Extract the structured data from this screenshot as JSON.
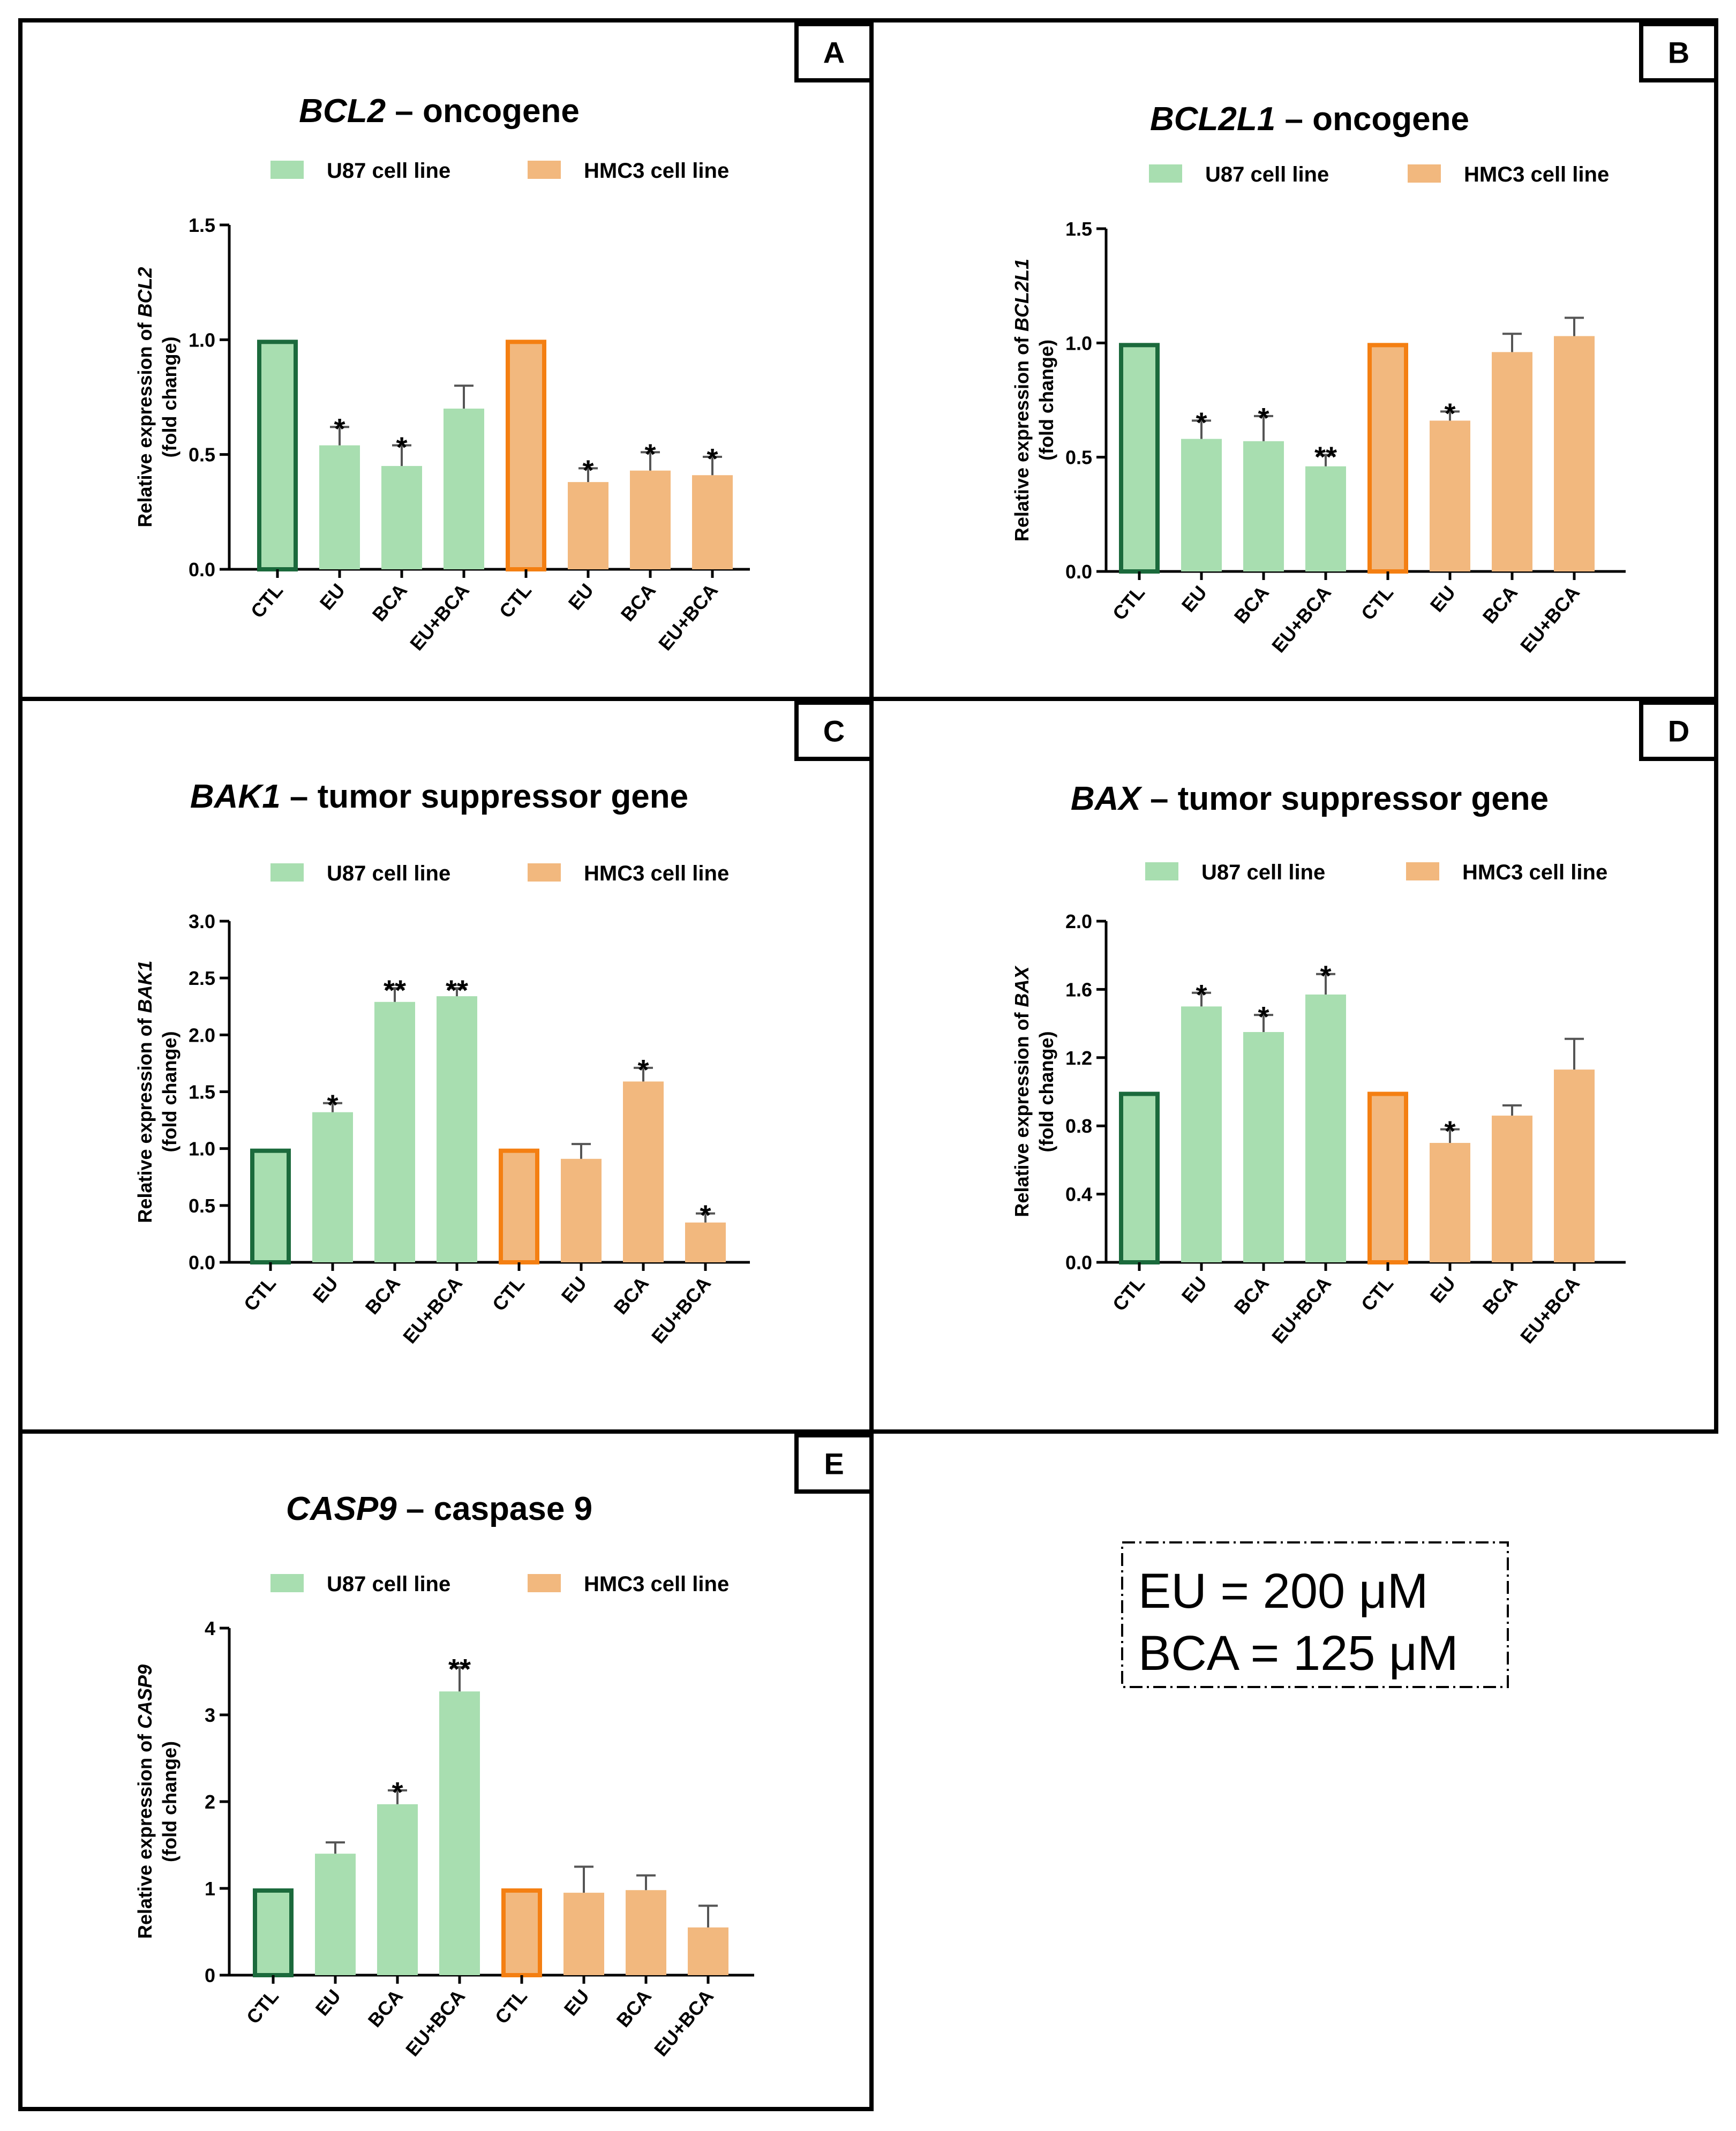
{
  "legend": {
    "u87_label": "U87 cell line",
    "hmc3_label": "HMC3 cell line"
  },
  "colors": {
    "u87_fill": "#a8deb0",
    "u87_ctl_stroke": "#1b6a3c",
    "hmc3_fill": "#f2b87e",
    "hmc3_ctl_stroke": "#f47f12",
    "error_bar": "#555555"
  },
  "note": {
    "line1": "EU = 200 μM",
    "line2": "BCA = 125 μM"
  },
  "chart_data": [
    {
      "panel": "A",
      "type": "bar",
      "title_gene": "BCL2",
      "title_rest": " – oncogene",
      "ylabel_prefix": "Relative expression of ",
      "ylabel_gene": "BCL2",
      "ylabel_line2": "(fold change)",
      "categories": [
        "CTL",
        "EU",
        "BCA",
        "EU+BCA",
        "CTL",
        "EU",
        "BCA",
        "EU+BCA"
      ],
      "groups": [
        "U87",
        "U87",
        "U87",
        "U87",
        "HMC3",
        "HMC3",
        "HMC3",
        "HMC3"
      ],
      "values": [
        1.0,
        0.54,
        0.45,
        0.7,
        1.0,
        0.38,
        0.43,
        0.41
      ],
      "errors": [
        0,
        0.08,
        0.09,
        0.1,
        0,
        0.06,
        0.08,
        0.08
      ],
      "significance": [
        "",
        "*",
        "*",
        "",
        "",
        "*",
        "*",
        "*"
      ],
      "ylim": [
        0,
        1.5
      ],
      "yticks": [
        "0.0",
        "0.5",
        "1.0",
        "1.5"
      ],
      "ytick_values": [
        0,
        0.5,
        1.0,
        1.5
      ]
    },
    {
      "panel": "B",
      "type": "bar",
      "title_gene": "BCL2L1",
      "title_rest": " – oncogene",
      "ylabel_prefix": "Relative expression of ",
      "ylabel_gene": "BCL2L1",
      "ylabel_line2": "(fold change)",
      "categories": [
        "CTL",
        "EU",
        "BCA",
        "EU+BCA",
        "CTL",
        "EU",
        "BCA",
        "EU+BCA"
      ],
      "groups": [
        "U87",
        "U87",
        "U87",
        "U87",
        "HMC3",
        "HMC3",
        "HMC3",
        "HMC3"
      ],
      "values": [
        1.0,
        0.58,
        0.57,
        0.46,
        1.0,
        0.66,
        0.96,
        1.03
      ],
      "errors": [
        0,
        0.08,
        0.11,
        0.05,
        0,
        0.04,
        0.08,
        0.08
      ],
      "significance": [
        "",
        "*",
        "*",
        "**",
        "",
        "*",
        "",
        ""
      ],
      "ylim": [
        0,
        1.5
      ],
      "yticks": [
        "0.0",
        "0.5",
        "1.0",
        "1.5"
      ],
      "ytick_values": [
        0,
        0.5,
        1.0,
        1.5
      ]
    },
    {
      "panel": "C",
      "type": "bar",
      "title_gene": "BAK1",
      "title_rest": " – tumor suppressor gene",
      "ylabel_prefix": "Relative expression of ",
      "ylabel_gene": "BAK1",
      "ylabel_line2": "(fold change)",
      "categories": [
        "CTL",
        "EU",
        "BCA",
        "EU+BCA",
        "CTL",
        "EU",
        "BCA",
        "EU+BCA"
      ],
      "groups": [
        "U87",
        "U87",
        "U87",
        "U87",
        "HMC3",
        "HMC3",
        "HMC3",
        "HMC3"
      ],
      "values": [
        1.0,
        1.32,
        2.29,
        2.34,
        1.0,
        0.91,
        1.59,
        0.35
      ],
      "errors": [
        0,
        0.08,
        0.12,
        0.07,
        0,
        0.13,
        0.12,
        0.08
      ],
      "significance": [
        "",
        "*",
        "**",
        "**",
        "",
        "",
        "*",
        "*"
      ],
      "ylim": [
        0,
        3.0
      ],
      "yticks": [
        "0.0",
        "0.5",
        "1.0",
        "1.5",
        "2.0",
        "2.5",
        "3.0"
      ],
      "ytick_values": [
        0,
        0.5,
        1.0,
        1.5,
        2.0,
        2.5,
        3.0
      ]
    },
    {
      "panel": "D",
      "type": "bar",
      "title_gene": "BAX",
      "title_rest": " – tumor suppressor gene",
      "ylabel_prefix": "Relative expression of ",
      "ylabel_gene": "BAX",
      "ylabel_line2": "(fold change)",
      "categories": [
        "CTL",
        "EU",
        "BCA",
        "EU+BCA",
        "CTL",
        "EU",
        "BCA",
        "EU+BCA"
      ],
      "groups": [
        "U87",
        "U87",
        "U87",
        "U87",
        "HMC3",
        "HMC3",
        "HMC3",
        "HMC3"
      ],
      "values": [
        1.0,
        1.5,
        1.35,
        1.57,
        1.0,
        0.7,
        0.86,
        1.13
      ],
      "errors": [
        0,
        0.08,
        0.1,
        0.12,
        0,
        0.08,
        0.06,
        0.18
      ],
      "significance": [
        "",
        "*",
        "*",
        "*",
        "",
        "*",
        "",
        ""
      ],
      "ylim": [
        0,
        2.0
      ],
      "yticks": [
        "0.0",
        "0.4",
        "0.8",
        "1.2",
        "1.6",
        "2.0"
      ],
      "ytick_values": [
        0,
        0.4,
        0.8,
        1.2,
        1.6,
        2.0
      ]
    },
    {
      "panel": "E",
      "type": "bar",
      "title_gene": "CASP9",
      "title_rest": " – caspase 9",
      "ylabel_prefix": "Relative expression of ",
      "ylabel_gene": "CASP9",
      "ylabel_line2": "(fold change)",
      "categories": [
        "CTL",
        "EU",
        "BCA",
        "EU+BCA",
        "CTL",
        "EU",
        "BCA",
        "EU+BCA"
      ],
      "groups": [
        "U87",
        "U87",
        "U87",
        "U87",
        "HMC3",
        "HMC3",
        "HMC3",
        "HMC3"
      ],
      "values": [
        1.0,
        1.4,
        1.97,
        3.27,
        1.0,
        0.95,
        0.98,
        0.55
      ],
      "errors": [
        0,
        0.13,
        0.16,
        0.28,
        0,
        0.3,
        0.17,
        0.25
      ],
      "significance": [
        "",
        "",
        "*",
        "**",
        "",
        "",
        "",
        ""
      ],
      "ylim": [
        0,
        4
      ],
      "yticks": [
        "0",
        "1",
        "2",
        "3",
        "4"
      ],
      "ytick_values": [
        0,
        1,
        2,
        3,
        4
      ]
    }
  ]
}
